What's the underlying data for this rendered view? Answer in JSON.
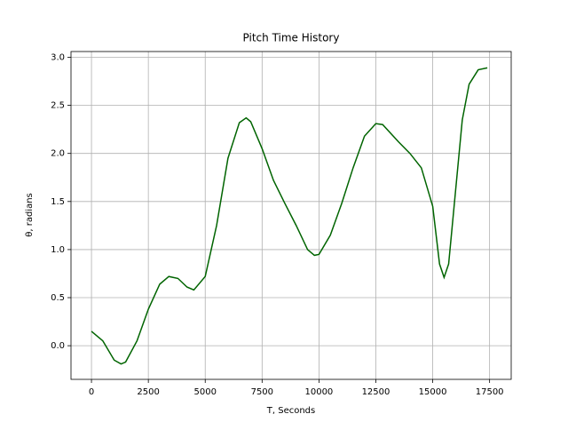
{
  "chart_data": {
    "type": "line",
    "title": "Pitch Time History",
    "x_label": "T, Seconds",
    "y_label": "θ, radians",
    "x": [
      0,
      500,
      1000,
      1300,
      1500,
      2000,
      2500,
      3000,
      3400,
      3800,
      4200,
      4500,
      5000,
      5500,
      6000,
      6500,
      6800,
      7000,
      7500,
      8000,
      8500,
      9000,
      9500,
      9800,
      10000,
      10500,
      11000,
      11500,
      12000,
      12500,
      12800,
      13500,
      14000,
      14500,
      15000,
      15300,
      15500,
      15700,
      16000,
      16300,
      16600,
      17000,
      17400
    ],
    "series": [
      {
        "name": "theta",
        "color": "#006400",
        "values": [
          0.15,
          0.05,
          -0.15,
          -0.19,
          -0.17,
          0.05,
          0.38,
          0.64,
          0.72,
          0.7,
          0.61,
          0.58,
          0.72,
          1.25,
          1.95,
          2.32,
          2.37,
          2.33,
          2.05,
          1.72,
          1.48,
          1.25,
          1.0,
          0.94,
          0.95,
          1.15,
          1.48,
          1.85,
          2.18,
          2.31,
          2.3,
          2.12,
          2.0,
          1.85,
          1.45,
          0.85,
          0.71,
          0.85,
          1.6,
          2.35,
          2.72,
          2.87,
          2.89
        ]
      }
    ],
    "xlim": [
      -900,
      18450
    ],
    "ylim": [
      -0.35,
      3.06
    ],
    "xticks": [
      0,
      2500,
      5000,
      7500,
      10000,
      12500,
      15000,
      17500
    ],
    "yticks": [
      {
        "value": 0,
        "label": "0.0"
      },
      0.5,
      {
        "value": 1,
        "label": "1.0"
      },
      1.5,
      {
        "value": 2,
        "label": "2.0"
      },
      2.5,
      {
        "value": 3,
        "label": "3.0"
      }
    ],
    "grid": true
  }
}
